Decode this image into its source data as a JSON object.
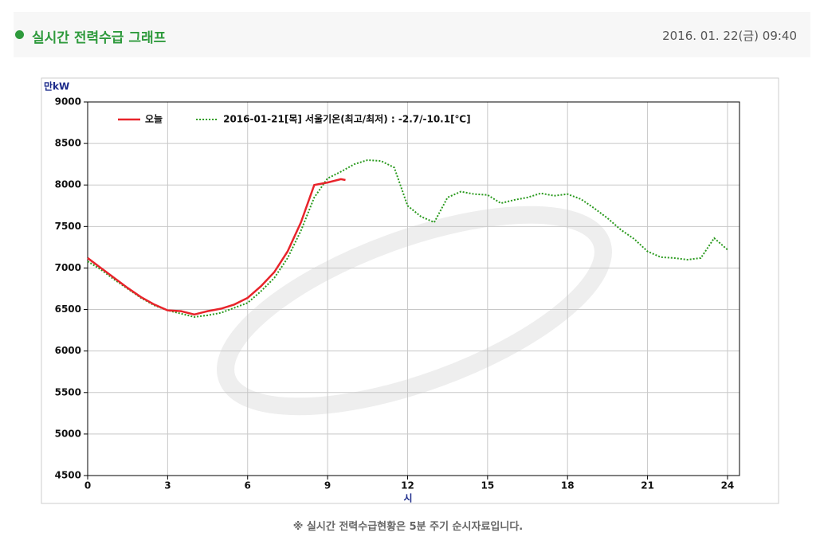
{
  "header": {
    "title": "실시간 전력수급 그래프",
    "datetime": "2016. 01. 22(금) 09:40"
  },
  "footer": {
    "note": "※ 실시간 전력수급현황은 5분 주기 순시자료입니다."
  },
  "chart_data": {
    "type": "line",
    "y_unit": "만kW",
    "x_label": "시",
    "xlim": [
      0,
      24.45
    ],
    "xticks": [
      0,
      3,
      6,
      9,
      12,
      15,
      18,
      21,
      24
    ],
    "ylim": [
      4500,
      9000
    ],
    "yticks": [
      4500,
      5000,
      5500,
      6000,
      6500,
      7000,
      7500,
      8000,
      8500,
      9000
    ],
    "grid": true,
    "series": [
      {
        "name": "오늘",
        "color": "#e8242b",
        "style": "solid",
        "x": [
          0,
          0.5,
          1,
          1.5,
          2,
          2.5,
          3,
          3.5,
          4,
          4.5,
          5,
          5.5,
          6,
          6.5,
          7,
          7.5,
          8,
          8.5,
          9,
          9.5,
          9.67
        ],
        "values": [
          7120,
          7000,
          6880,
          6760,
          6650,
          6560,
          6490,
          6480,
          6440,
          6480,
          6510,
          6560,
          6640,
          6780,
          6950,
          7200,
          7550,
          8000,
          8030,
          8070,
          8060
        ]
      },
      {
        "name": "2016-01-21[목] 서울기온(최고/최저) : -2.7/-10.1[℃]",
        "color": "#2a9a1e",
        "style": "dotted",
        "x": [
          0,
          0.5,
          1,
          1.5,
          2,
          2.5,
          3,
          3.5,
          4,
          4.5,
          5,
          5.5,
          6,
          6.5,
          7,
          7.5,
          8,
          8.5,
          9,
          9.5,
          10,
          10.5,
          11,
          11.5,
          12,
          12.5,
          13,
          13.5,
          14,
          14.5,
          15,
          15.5,
          16,
          16.5,
          17,
          17.5,
          18,
          18.5,
          19,
          19.5,
          20,
          20.5,
          21,
          21.5,
          22,
          22.5,
          23,
          23.5,
          24
        ],
        "values": [
          7080,
          6980,
          6860,
          6750,
          6640,
          6550,
          6490,
          6450,
          6410,
          6430,
          6460,
          6520,
          6580,
          6720,
          6880,
          7120,
          7450,
          7850,
          8080,
          8160,
          8250,
          8300,
          8290,
          8210,
          7750,
          7620,
          7550,
          7850,
          7920,
          7890,
          7880,
          7780,
          7820,
          7850,
          7900,
          7870,
          7890,
          7830,
          7720,
          7600,
          7460,
          7350,
          7200,
          7130,
          7120,
          7100,
          7120,
          7360,
          7220
        ]
      }
    ]
  }
}
